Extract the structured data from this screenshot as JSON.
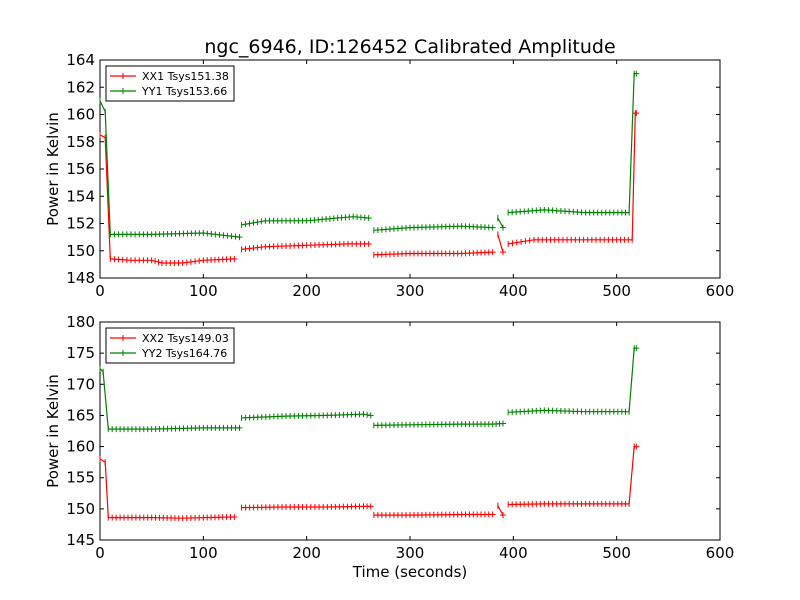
{
  "title": "ngc_6946, ID:126452 Calibrated Amplitude",
  "chart_data": [
    {
      "type": "line",
      "ylabel": "Power in Kelvin",
      "xlabel": "",
      "xlim": [
        0,
        600
      ],
      "ylim": [
        148,
        164
      ],
      "xticks": [
        0,
        100,
        200,
        300,
        400,
        500,
        600
      ],
      "yticks": [
        148,
        150,
        152,
        154,
        156,
        158,
        160,
        162,
        164
      ],
      "grid": false,
      "legend_position": "top-left",
      "series": [
        {
          "name": "XX1 Tsys151.38",
          "color": "#ff0000",
          "segments": [
            {
              "x": [
                0,
                5,
                10,
                30,
                50,
                60,
                80,
                100,
                130
              ],
              "y": [
                158.5,
                158.3,
                149.4,
                149.3,
                149.3,
                149.1,
                149.1,
                149.3,
                149.4
              ]
            },
            {
              "x": [
                137,
                160,
                200,
                240,
                260
              ],
              "y": [
                150.1,
                150.3,
                150.4,
                150.5,
                150.5
              ]
            },
            {
              "x": [
                265,
                300,
                350,
                380
              ],
              "y": [
                149.7,
                149.8,
                149.8,
                149.9
              ]
            },
            {
              "x": [
                385,
                390
              ],
              "y": [
                151.2,
                149.9
              ]
            },
            {
              "x": [
                395,
                420,
                460,
                500,
                515,
                518,
                519
              ],
              "y": [
                150.5,
                150.8,
                150.8,
                150.8,
                150.8,
                160.1,
                160.1
              ]
            }
          ]
        },
        {
          "name": "YY1 Tsys153.66",
          "color": "#008000",
          "segments": [
            {
              "x": [
                0,
                5,
                10,
                50,
                100,
                135
              ],
              "y": [
                161.0,
                160.2,
                151.2,
                151.2,
                151.3,
                151.0
              ]
            },
            {
              "x": [
                137,
                160,
                200,
                230,
                245,
                260
              ],
              "y": [
                151.9,
                152.2,
                152.2,
                152.4,
                152.5,
                152.4
              ]
            },
            {
              "x": [
                265,
                300,
                350,
                380
              ],
              "y": [
                151.5,
                151.7,
                151.8,
                151.7
              ]
            },
            {
              "x": [
                385,
                390
              ],
              "y": [
                152.4,
                151.7
              ]
            },
            {
              "x": [
                395,
                430,
                470,
                505,
                512,
                517,
                519
              ],
              "y": [
                152.8,
                153.0,
                152.8,
                152.8,
                152.8,
                163.0,
                163.0
              ]
            }
          ]
        }
      ]
    },
    {
      "type": "line",
      "ylabel": "Power in Kelvin",
      "xlabel": "Time (seconds)",
      "xlim": [
        0,
        600
      ],
      "ylim": [
        145,
        180
      ],
      "xticks": [
        0,
        100,
        200,
        300,
        400,
        500,
        600
      ],
      "yticks": [
        145,
        150,
        155,
        160,
        165,
        170,
        175,
        180
      ],
      "grid": false,
      "legend_position": "top-left",
      "series": [
        {
          "name": "XX2 Tsys149.03",
          "color": "#ff0000",
          "segments": [
            {
              "x": [
                0,
                5,
                8,
                50,
                80,
                100,
                130
              ],
              "y": [
                158.0,
                157.5,
                148.6,
                148.6,
                148.5,
                148.6,
                148.7
              ]
            },
            {
              "x": [
                137,
                180,
                220,
                255,
                262
              ],
              "y": [
                150.2,
                150.3,
                150.3,
                150.4,
                150.4
              ]
            },
            {
              "x": [
                265,
                300,
                350,
                380
              ],
              "y": [
                149.0,
                149.0,
                149.1,
                149.1
              ]
            },
            {
              "x": [
                385,
                390
              ],
              "y": [
                150.5,
                149.0
              ]
            },
            {
              "x": [
                395,
                430,
                470,
                505,
                512,
                517,
                519
              ],
              "y": [
                150.7,
                150.8,
                150.8,
                150.8,
                150.8,
                160.0,
                160.0
              ]
            }
          ]
        },
        {
          "name": "YY2 Tsys164.76",
          "color": "#008000",
          "segments": [
            {
              "x": [
                0,
                3,
                8,
                50,
                100,
                135
              ],
              "y": [
                172.5,
                172.0,
                162.8,
                162.8,
                163.0,
                163.0
              ]
            },
            {
              "x": [
                137,
                180,
                220,
                255,
                262
              ],
              "y": [
                164.6,
                164.9,
                165.0,
                165.2,
                165.0
              ]
            },
            {
              "x": [
                265,
                300,
                350,
                380,
                390
              ],
              "y": [
                163.4,
                163.5,
                163.6,
                163.6,
                163.7
              ]
            },
            {
              "x": [
                395,
                430,
                470,
                505,
                512,
                517,
                519
              ],
              "y": [
                165.5,
                165.8,
                165.6,
                165.6,
                165.6,
                175.8,
                175.8
              ]
            }
          ]
        }
      ]
    }
  ]
}
